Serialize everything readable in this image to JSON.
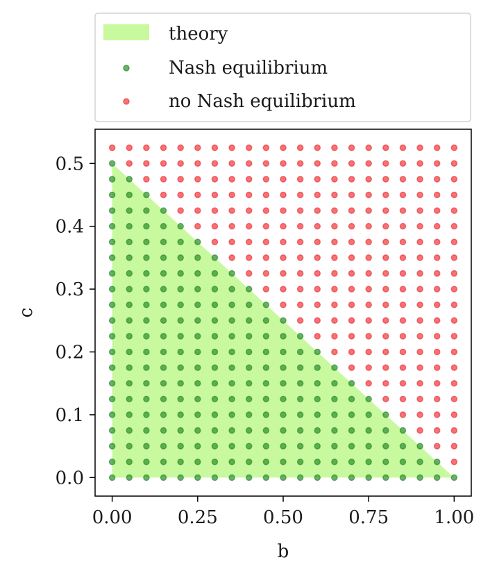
{
  "chart_data": {
    "type": "scatter",
    "title": "",
    "xlabel": "b",
    "ylabel": "c",
    "xlim": [
      -0.05,
      1.05
    ],
    "ylim": [
      -0.0295,
      0.5545
    ],
    "xticks": [
      0.0,
      0.25,
      0.5,
      0.75,
      1.0
    ],
    "xtick_labels": [
      "0.00",
      "0.25",
      "0.50",
      "0.75",
      "1.00"
    ],
    "yticks": [
      0.0,
      0.1,
      0.2,
      0.3,
      0.4,
      0.5
    ],
    "ytick_labels": [
      "0.0",
      "0.1",
      "0.2",
      "0.3",
      "0.4",
      "0.5"
    ],
    "grid": false,
    "legend_placement": "above plot",
    "region": {
      "name": "theory",
      "color": "#c9f99f",
      "polygon": [
        [
          0,
          0
        ],
        [
          0,
          0.5
        ],
        [
          1,
          0
        ]
      ]
    },
    "grid_points": {
      "b_values": [
        0,
        0.05,
        0.1,
        0.15,
        0.2,
        0.25,
        0.3,
        0.35,
        0.4,
        0.45,
        0.5,
        0.55,
        0.6,
        0.65,
        0.7,
        0.75,
        0.8,
        0.85,
        0.9,
        0.95,
        1.0
      ],
      "c_values": [
        0,
        0.025,
        0.05,
        0.075,
        0.1,
        0.125,
        0.15,
        0.175,
        0.2,
        0.225,
        0.25,
        0.275,
        0.3,
        0.325,
        0.35,
        0.375,
        0.4,
        0.425,
        0.45,
        0.475,
        0.5,
        0.525
      ],
      "rule": "Nash equilibrium where b + 2c <= 1, otherwise no Nash equilibrium"
    },
    "series": [
      {
        "name": "Nash equilibrium",
        "color": "#2f8f2f",
        "marker": "circle"
      },
      {
        "name": "no Nash equilibrium",
        "color": "#f0383c",
        "marker": "circle"
      }
    ],
    "legend": {
      "entries": [
        "theory",
        "Nash equilibrium",
        "no Nash equilibrium"
      ]
    }
  }
}
